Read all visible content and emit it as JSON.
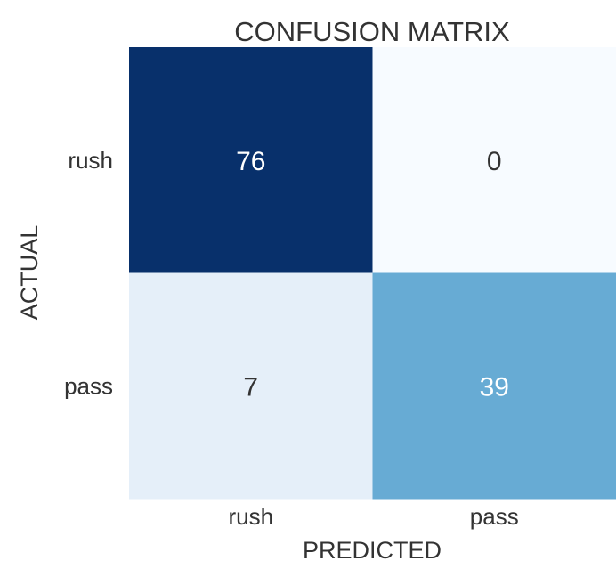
{
  "chart_data": {
    "type": "heatmap",
    "title": "CONFUSION MATRIX",
    "xlabel": "PREDICTED",
    "ylabel": "ACTUAL",
    "x_categories": [
      "rush",
      "pass"
    ],
    "y_categories": [
      "rush",
      "pass"
    ],
    "values": [
      [
        76,
        0
      ],
      [
        7,
        39
      ]
    ],
    "vmin": 0,
    "vmax": 76,
    "colormap": "Blues",
    "colors": {
      "low": "#f7fbff",
      "high": "#08306b",
      "light_text": "#ffffff",
      "dark_text": "#333333"
    }
  }
}
